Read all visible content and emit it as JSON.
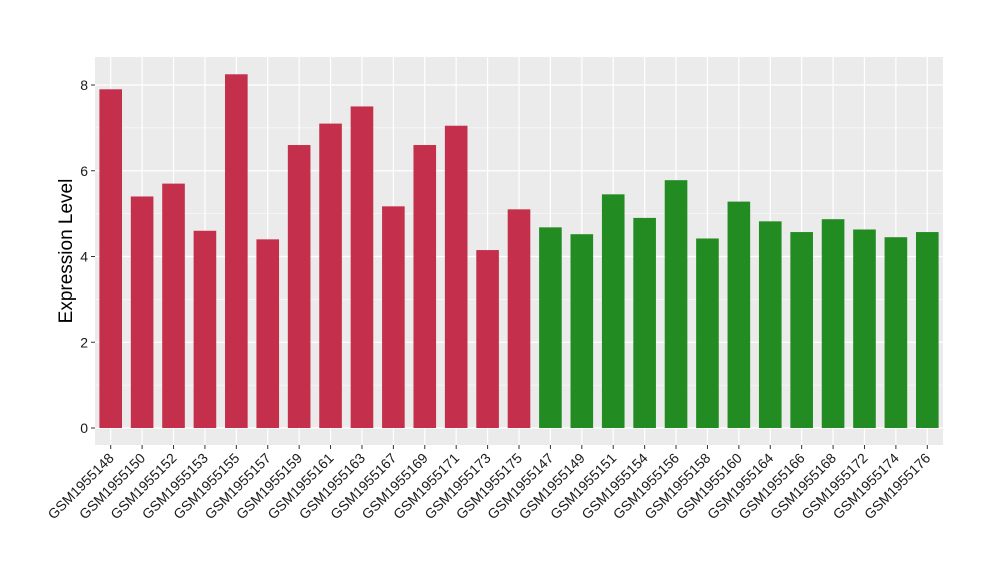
{
  "chart_data": {
    "type": "bar",
    "title": "",
    "xlabel": "",
    "ylabel": "Expression Level",
    "ylim": [
      0,
      8.6
    ],
    "yticks": [
      0,
      2,
      4,
      6,
      8
    ],
    "grid": true,
    "legend": "none",
    "colors": {
      "group1": "#c4304b",
      "group2": "#228b22",
      "panel": "#ebebeb",
      "grid": "#ffffff"
    },
    "categories": [
      "GSM1955148",
      "GSM1955150",
      "GSM1955152",
      "GSM1955153",
      "GSM1955155",
      "GSM1955157",
      "GSM1955159",
      "GSM1955161",
      "GSM1955163",
      "GSM1955167",
      "GSM1955169",
      "GSM1955171",
      "GSM1955173",
      "GSM1955175",
      "GSM1955147",
      "GSM1955149",
      "GSM1955151",
      "GSM1955154",
      "GSM1955156",
      "GSM1955158",
      "GSM1955160",
      "GSM1955164",
      "GSM1955166",
      "GSM1955168",
      "GSM1955172",
      "GSM1955174",
      "GSM1955176"
    ],
    "values": [
      7.9,
      5.4,
      5.7,
      4.6,
      8.25,
      4.4,
      6.6,
      7.1,
      7.5,
      5.17,
      6.6,
      7.05,
      4.15,
      5.1,
      4.68,
      4.52,
      5.45,
      4.9,
      5.78,
      4.42,
      5.28,
      4.82,
      4.57,
      4.87,
      4.63,
      4.45,
      4.57
    ],
    "groups": [
      "group1",
      "group1",
      "group1",
      "group1",
      "group1",
      "group1",
      "group1",
      "group1",
      "group1",
      "group1",
      "group1",
      "group1",
      "group1",
      "group1",
      "group2",
      "group2",
      "group2",
      "group2",
      "group2",
      "group2",
      "group2",
      "group2",
      "group2",
      "group2",
      "group2",
      "group2",
      "group2"
    ]
  }
}
